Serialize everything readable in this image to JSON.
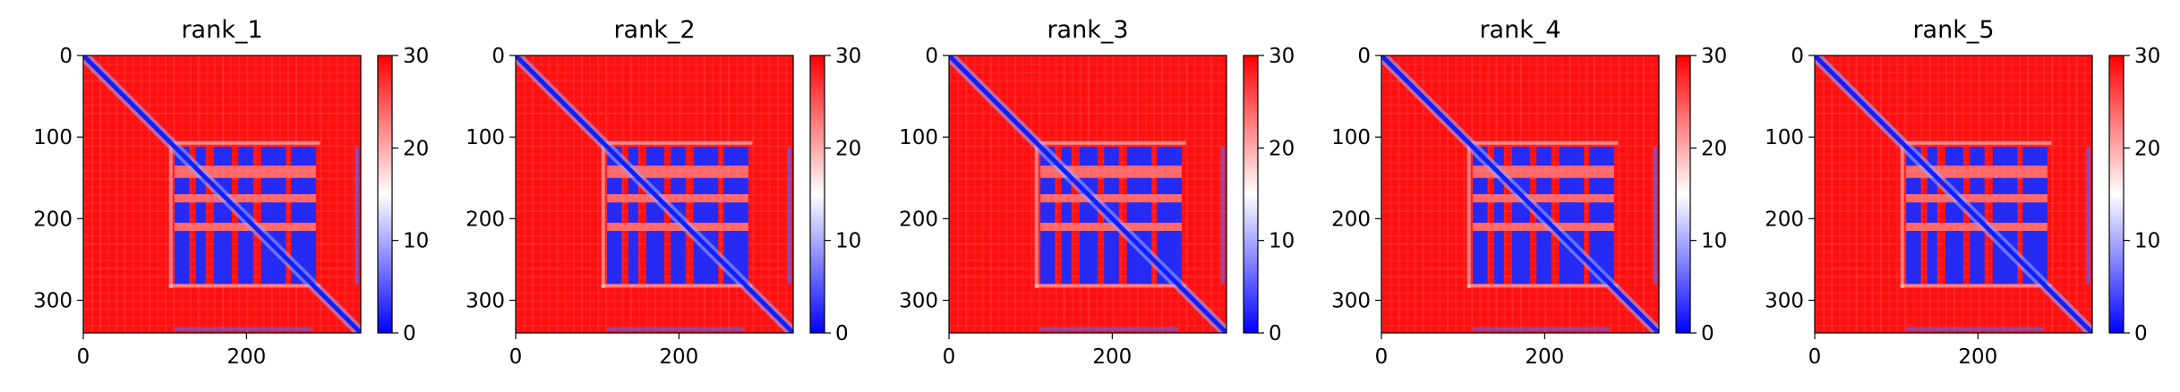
{
  "chart_data": [
    {
      "type": "heatmap",
      "title": "rank_1",
      "xticks": [
        0,
        200
      ],
      "yticks": [
        0,
        100,
        200,
        300
      ],
      "xlim": [
        0,
        340
      ],
      "ylim": [
        340,
        0
      ],
      "colorbar": {
        "ticks": [
          0,
          10,
          20,
          30
        ],
        "range": [
          0,
          30
        ],
        "colormap": "bwr",
        "colors": [
          "#0000ff",
          "#ffffff",
          "#ff0000"
        ]
      }
    },
    {
      "type": "heatmap",
      "title": "rank_2",
      "xticks": [
        0,
        200
      ],
      "yticks": [
        0,
        100,
        200,
        300
      ],
      "xlim": [
        0,
        340
      ],
      "ylim": [
        340,
        0
      ],
      "colorbar": {
        "ticks": [
          0,
          10,
          20,
          30
        ],
        "range": [
          0,
          30
        ],
        "colormap": "bwr",
        "colors": [
          "#0000ff",
          "#ffffff",
          "#ff0000"
        ]
      }
    },
    {
      "type": "heatmap",
      "title": "rank_3",
      "xticks": [
        0,
        200
      ],
      "yticks": [
        0,
        100,
        200,
        300
      ],
      "xlim": [
        0,
        340
      ],
      "ylim": [
        340,
        0
      ],
      "colorbar": {
        "ticks": [
          0,
          10,
          20,
          30
        ],
        "range": [
          0,
          30
        ],
        "colormap": "bwr",
        "colors": [
          "#0000ff",
          "#ffffff",
          "#ff0000"
        ]
      }
    },
    {
      "type": "heatmap",
      "title": "rank_4",
      "xticks": [
        0,
        200
      ],
      "yticks": [
        0,
        100,
        200,
        300
      ],
      "xlim": [
        0,
        340
      ],
      "ylim": [
        340,
        0
      ],
      "colorbar": {
        "ticks": [
          0,
          10,
          20,
          30
        ],
        "range": [
          0,
          30
        ],
        "colormap": "bwr",
        "colors": [
          "#0000ff",
          "#ffffff",
          "#ff0000"
        ]
      }
    },
    {
      "type": "heatmap",
      "title": "rank_5",
      "xticks": [
        0,
        200
      ],
      "yticks": [
        0,
        100,
        200,
        300
      ],
      "xlim": [
        0,
        340
      ],
      "ylim": [
        340,
        0
      ],
      "colorbar": {
        "ticks": [
          0,
          10,
          20,
          30
        ],
        "range": [
          0,
          30
        ],
        "colormap": "bwr",
        "colors": [
          "#0000ff",
          "#ffffff",
          "#ff0000"
        ]
      }
    }
  ]
}
